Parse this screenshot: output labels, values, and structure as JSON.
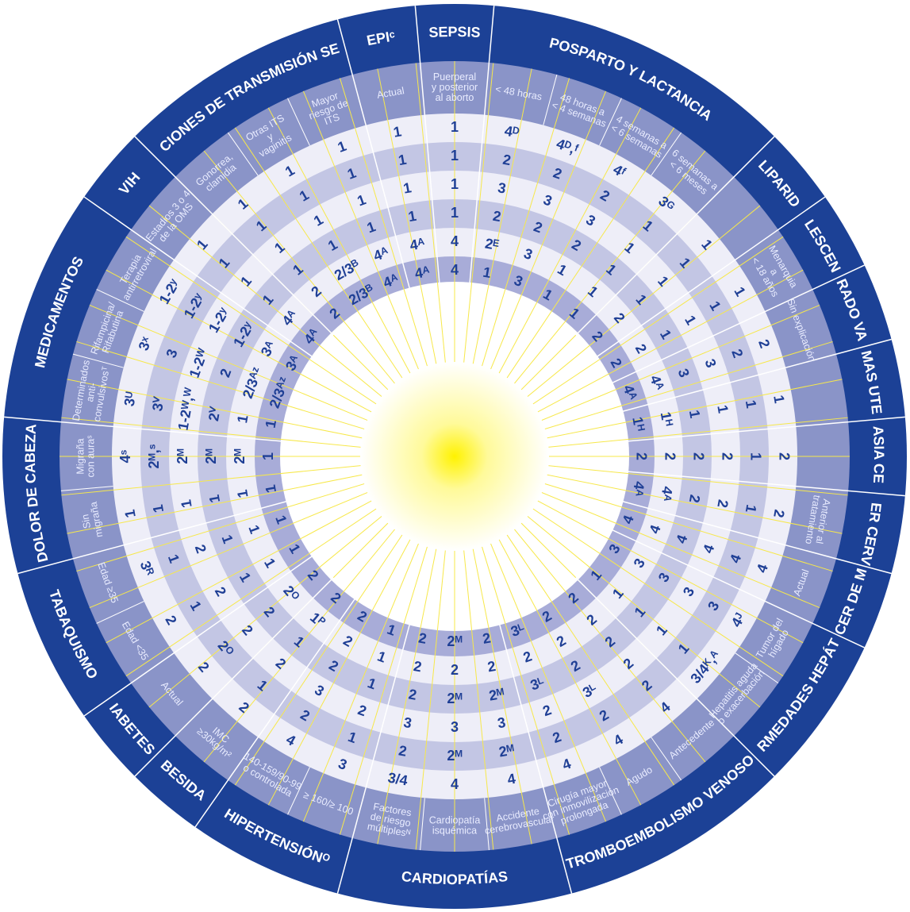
{
  "colors": {
    "outer_band": "#1c4196",
    "sub_band": "#8a94c8",
    "ring_light": "#eeeef8",
    "ring_mid": "#c3c6e4",
    "ring_inner": "#a8acd8",
    "divider": "#ffffff",
    "ray": "#f7e84a",
    "code_text": "#1f3f95",
    "sun_core": "#fff200",
    "sun_edge": "#ffffff"
  },
  "wheel": {
    "categories": [
      {
        "label": "SEPSIS",
        "subs": [
          {
            "label": [
              "Puerperal",
              "y posterior",
              "al aborto"
            ],
            "codes": [
              "1",
              "1",
              "1",
              "1",
              "4",
              "4"
            ]
          }
        ]
      },
      {
        "label": "POSPARTO Y LACTANCIA",
        "subs": [
          {
            "label": [
              "< 48 horas"
            ],
            "codes": [
              "4ᴰ",
              "2",
              "3",
              "2",
              "2ᴱ",
              "1"
            ]
          },
          {
            "label": [
              "48 horas a",
              "< 4 semanas"
            ],
            "codes": [
              "4ᴰ,ᶠ",
              "2",
              "3",
              "2",
              "3",
              "3"
            ]
          },
          {
            "label": [
              "4 semanas a",
              "< 6 semanas"
            ],
            "codes": [
              "4ᶠ",
              "2",
              "3",
              "2",
              "1",
              "1"
            ]
          },
          {
            "label": [
              "6 semanas a",
              "< 6 meses"
            ],
            "codes": [
              "3ᴳ",
              "1",
              "1",
              "1",
              "1",
              "1"
            ]
          }
        ]
      },
      {
        "label": "NULIPARIDAD",
        "subs": [
          {
            "label": [
              ""
            ],
            "codes": [
              "1",
              "1",
              "1",
              "1",
              "2",
              "2"
            ]
          }
        ]
      },
      {
        "label": "ADOLESCENTES",
        "subs": [
          {
            "label": [
              "Menarquia",
              "a",
              "< 18 años"
            ],
            "codes": [
              "1",
              "1",
              "1",
              "1",
              "2",
              "2"
            ]
          }
        ]
      },
      {
        "label": "SANGRADO VAGINAL",
        "subs": [
          {
            "label": [
              "Sin explicación"
            ],
            "codes": [
              "2",
              "2",
              "3",
              "3",
              "4ᴬ",
              "4ᴬ"
            ]
          }
        ]
      },
      {
        "label": "FIBROMAS UTERINOS",
        "subs": [
          {
            "label": [
              ""
            ],
            "codes": [
              "1",
              "1",
              "1",
              "1",
              "1ᴴ",
              "1ᴴ"
            ]
          }
        ]
      },
      {
        "label": "NEOPLASIA CERVICAL",
        "subs": [
          {
            "label": [
              ""
            ],
            "codes": [
              "2",
              "1",
              "2",
              "2",
              "2",
              "2"
            ]
          }
        ]
      },
      {
        "label": "CÁNCER CERVICAL",
        "subs": [
          {
            "label": [
              "Anterior al",
              "tratamiento"
            ],
            "codes": [
              "2",
              "1",
              "2",
              "2",
              "4ᴬ",
              "4ᴬ"
            ]
          }
        ]
      },
      {
        "label": "CÁNCER DE MAMA",
        "subs": [
          {
            "label": [
              "Actual"
            ],
            "codes": [
              "4",
              "4",
              "4",
              "4",
              "4",
              "4"
            ]
          }
        ]
      },
      {
        "label": "ENFERMEDADES HEPÁTICAS",
        "subs": [
          {
            "label": [
              "Tumor del",
              "hígado"
            ],
            "codes": [
              "4ᴶ",
              "3",
              "3",
              "3",
              "3",
              "3"
            ]
          },
          {
            "label": [
              "Hepatitis aguda",
              "o exacerbación"
            ],
            "codes": [
              "3/4ᴷ,ᴬ",
              "1",
              "1",
              "1",
              "1",
              "1"
            ]
          }
        ]
      },
      {
        "label": "TROMBOEMBOLISMO VENOSO",
        "subs": [
          {
            "label": [
              "Antecedente"
            ],
            "codes": [
              "4",
              "2",
              "2",
              "2",
              "2",
              "2"
            ]
          },
          {
            "label": [
              "Agudo"
            ],
            "codes": [
              "4",
              "2",
              "3ᴸ",
              "2",
              "2",
              "2"
            ]
          },
          {
            "label": [
              "Cirugía mayor",
              "con inmovilización",
              "prolongada"
            ],
            "codes": [
              "4",
              "2",
              "2",
              "3ᴸ",
              "2",
              "3ᴸ"
            ]
          }
        ]
      },
      {
        "label": "CARDIOPATÍAS",
        "subs": [
          {
            "label": [
              "Accidente",
              "cerebrovascular"
            ],
            "codes": [
              "4",
              "2ᴹ",
              "3",
              "2ᴹ",
              "2",
              "2"
            ]
          },
          {
            "label": [
              "Cardiopatía",
              "isquémica"
            ],
            "codes": [
              "4",
              "2ᴹ",
              "3",
              "2ᴹ",
              "2",
              "2ᴹ"
            ]
          },
          {
            "label": [
              "Factores",
              "de riesgo",
              "múltiplesᴺ"
            ],
            "codes": [
              "3/4",
              "2",
              "3",
              "2",
              "2",
              "2"
            ]
          }
        ]
      },
      {
        "label": "HIPERTENSIÓNᴼ",
        "subs": [
          {
            "label": [
              "≥ 160/≥ 100"
            ],
            "codes": [
              "3",
              "1",
              "2",
              "1",
              "1",
              "1"
            ]
          },
          {
            "label": [
              "140-159/90-99",
              "o controlada"
            ],
            "codes": [
              "4",
              "2",
              "3",
              "2",
              "2",
              "2"
            ]
          }
        ]
      },
      {
        "label": "OBESIDAD",
        "subs": [
          {
            "label": [
              "IMC",
              "≥30kg/m²"
            ],
            "codes": [
              "2",
              "1",
              "2",
              "1",
              "1ᴾ",
              "2"
            ]
          }
        ]
      },
      {
        "label": "DIABETESᴼ",
        "subs": [
          {
            "label": [
              "Actual"
            ],
            "codes": [
              "2",
              "2ᴼ",
              "2",
              "2",
              "2ᴼ",
              "2"
            ]
          }
        ]
      },
      {
        "label": "TABAQUISMO",
        "subs": [
          {
            "label": [
              "Edad <35"
            ],
            "codes": [
              "2",
              "1",
              "2",
              "1",
              "1",
              "1"
            ]
          },
          {
            "label": [
              "Edad ≥35"
            ],
            "codes": [
              "3ᴿ",
              "1",
              "2",
              "1",
              "1",
              "1"
            ]
          }
        ]
      },
      {
        "label": "DOLOR DE CABEZA",
        "subs": [
          {
            "label": [
              "Sin",
              "migraña"
            ],
            "codes": [
              "1",
              "1",
              "1",
              "1",
              "1",
              "1"
            ]
          },
          {
            "label": [
              "Migraña",
              "con auraˢ"
            ],
            "codes": [
              "4ˢ",
              "2ᴹ,ˢ",
              "2ᴹ",
              "2ᴹ",
              "2ᴹ",
              "1"
            ]
          }
        ]
      },
      {
        "label": "MEDICAMENTOS",
        "subs": [
          {
            "label": [
              "Determinados",
              "anti-",
              "convulsivosᵀ"
            ],
            "codes": [
              "3ᵁ",
              "3ⱽ",
              "1-2ᵂ,ᵂ",
              "2ⱽ",
              "1",
              "1"
            ]
          },
          {
            "label": [
              "Rifampicina/",
              "Rifabutina"
            ],
            "codes": [
              "3ˣ",
              "3",
              "1-2ᵂ",
              "2",
              "2/3ᴬᶻ",
              "2/3ᴬᶻ"
            ]
          },
          {
            "label": [
              "Terapia",
              "antirretroviral"
            ],
            "codes": [
              "1-2ʸ",
              "1-2ʸ",
              "1-2ʸ",
              "1-2ʸ",
              "3ᴬ",
              "3ᴬ"
            ]
          }
        ]
      },
      {
        "label": "VIH",
        "subs": [
          {
            "label": [
              "Estadios 3 o 4",
              "de la OMS"
            ],
            "codes": [
              "1",
              "1",
              "1",
              "1",
              "4ᴬ",
              "4ᴬ"
            ]
          }
        ]
      },
      {
        "label": "INFECCIONES DE TRANSMISIÓN SEXUAL",
        "subs": [
          {
            "label": [
              "Gonorrea,",
              "clamidia"
            ],
            "codes": [
              "1",
              "1",
              "1",
              "1",
              "2",
              "2"
            ]
          },
          {
            "label": [
              "Otras ITS",
              "y",
              "vaginitis"
            ],
            "codes": [
              "1",
              "1",
              "1",
              "1",
              "2/3ᴮ",
              "2/3ᴮ"
            ]
          },
          {
            "label": [
              "Mayor",
              "riesgo de",
              "ITS"
            ],
            "codes": [
              "1",
              "1",
              "1",
              "1",
              "4ᴬ",
              "4ᴬ"
            ]
          }
        ]
      },
      {
        "label": "EPIᶜ",
        "subs": [
          {
            "label": [
              "Actual"
            ],
            "codes": [
              "1",
              "1",
              "1",
              "1",
              "4ᴬ",
              "4ᴬ"
            ]
          }
        ]
      }
    ]
  }
}
